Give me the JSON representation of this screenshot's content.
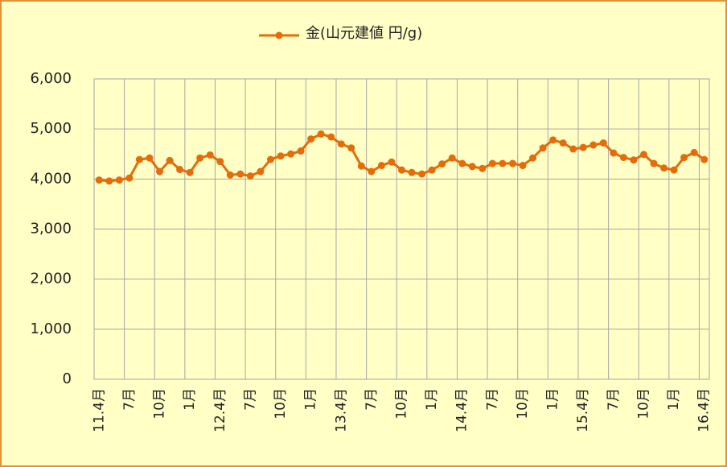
{
  "chart_data": {
    "type": "line",
    "categories": [
      "11.4月",
      null,
      null,
      "7月",
      null,
      null,
      "10月",
      null,
      null,
      "1月",
      null,
      null,
      "12.4月",
      null,
      null,
      "7月",
      null,
      null,
      "10月",
      null,
      null,
      "1月",
      null,
      null,
      "13.4月",
      null,
      null,
      "7月",
      null,
      null,
      "10月",
      null,
      null,
      "1月",
      null,
      null,
      "14.4月",
      null,
      null,
      "7月",
      null,
      null,
      "10月",
      null,
      null,
      "1月",
      null,
      null,
      "15.4月",
      null,
      null,
      "7月",
      null,
      null,
      "10月",
      null,
      null,
      "1月",
      null,
      null,
      "16.4月"
    ],
    "series": [
      {
        "name": "金(山元建値 円/g)",
        "color": "#e46c0a",
        "values": [
          3980,
          3960,
          3980,
          4020,
          4390,
          4420,
          4150,
          4370,
          4190,
          4130,
          4420,
          4480,
          4350,
          4080,
          4100,
          4060,
          4150,
          4390,
          4460,
          4500,
          4560,
          4800,
          4900,
          4840,
          4700,
          4620,
          4260,
          4150,
          4270,
          4340,
          4180,
          4130,
          4100,
          4180,
          4300,
          4420,
          4310,
          4250,
          4210,
          4310,
          4310,
          4310,
          4270,
          4420,
          4620,
          4780,
          4720,
          4600,
          4630,
          4680,
          4720,
          4520,
          4430,
          4380,
          4490,
          4310,
          4220,
          4180,
          4430,
          4530,
          4390
        ]
      }
    ],
    "ylim": [
      0,
      6000
    ],
    "yticks": [
      0,
      {
        "value": 1000,
        "label": "1,000"
      },
      {
        "value": 2000,
        "label": "2,000"
      },
      {
        "value": 3000,
        "label": "3,000"
      },
      {
        "value": 4000,
        "label": "4,000"
      },
      {
        "value": 5000,
        "label": "5,000"
      },
      {
        "value": 6000,
        "label": "6,000"
      }
    ],
    "grid": true,
    "legend": "top"
  }
}
